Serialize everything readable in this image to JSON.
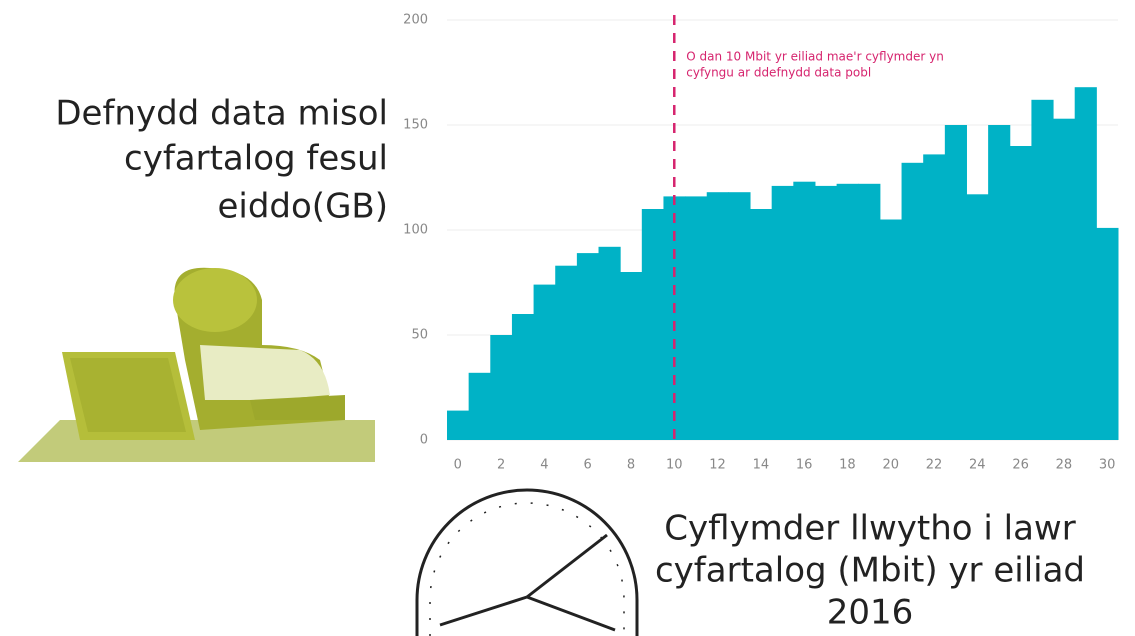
{
  "chart_data": {
    "type": "bar",
    "ylabel": [
      "Defnydd data misol",
      "cyfartalog fesul",
      "eiddo(GB)"
    ],
    "xlabel": [
      "Cyflymder llwytho i lawr",
      "cyfartalog (Mbit) yr eiliad",
      "2016"
    ],
    "x": [
      0,
      1,
      2,
      3,
      4,
      5,
      6,
      7,
      8,
      9,
      10,
      11,
      12,
      13,
      14,
      15,
      16,
      17,
      18,
      19,
      20,
      21,
      22,
      23,
      24,
      25,
      26,
      27,
      28,
      29,
      30
    ],
    "values": [
      14,
      32,
      50,
      60,
      74,
      83,
      89,
      92,
      80,
      110,
      116,
      116,
      118,
      118,
      110,
      121,
      123,
      121,
      122,
      122,
      105,
      132,
      136,
      150,
      117,
      150,
      140,
      162,
      153,
      168,
      101
    ],
    "color": "#00b2c6",
    "xlim": [
      -0.5,
      30.5
    ],
    "xticks": [
      0,
      2,
      4,
      6,
      8,
      10,
      12,
      14,
      16,
      18,
      20,
      22,
      24,
      26,
      28,
      30
    ],
    "ylim": [
      0,
      200
    ],
    "yticks": [
      0,
      50,
      100,
      150,
      200
    ],
    "grid": true,
    "annotation": {
      "x": 10,
      "color": "#d6246e",
      "lines": [
        "O dan 10 Mbit yr eiliad mae'r cyflymder yn",
        "cyfyngu ar ddefnydd data pobl"
      ]
    }
  }
}
